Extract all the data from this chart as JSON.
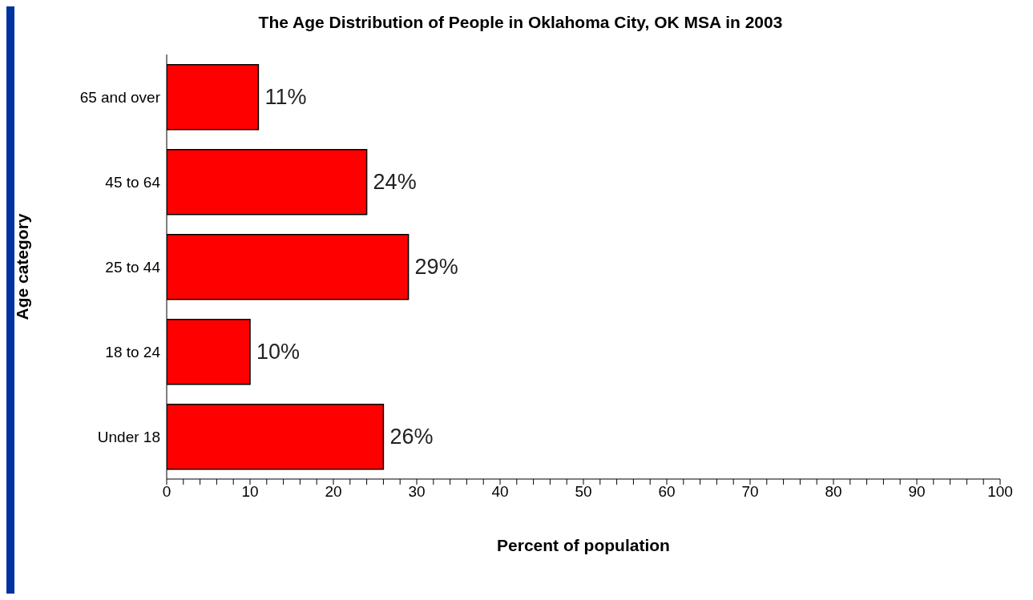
{
  "chart_data": {
    "type": "bar",
    "orientation": "horizontal",
    "title": "The Age Distribution of People in Oklahoma City, OK MSA in 2003",
    "xlabel": "Percent of population",
    "ylabel": "Age category",
    "categories": [
      "65 and over",
      "45 to 64",
      "25 to 44",
      "18 to 24",
      "Under 18"
    ],
    "values": [
      11,
      24,
      29,
      10,
      26
    ],
    "value_labels": [
      "11%",
      "24%",
      "29%",
      "10%",
      "26%"
    ],
    "color": "#ff0000",
    "xlim": [
      0,
      100
    ],
    "xticks": [
      0,
      {
        "value": 2,
        "label": null
      },
      {
        "value": 4,
        "label": null
      },
      {
        "value": 6,
        "label": null
      },
      {
        "value": 8,
        "label": null
      },
      10,
      {
        "value": 12,
        "label": null
      },
      {
        "value": 14,
        "label": null
      },
      {
        "value": 16,
        "label": null
      },
      {
        "value": 18,
        "label": null
      },
      20,
      {
        "value": 22,
        "label": null
      },
      {
        "value": 24,
        "label": null
      },
      {
        "value": 26,
        "label": null
      },
      {
        "value": 28,
        "label": null
      },
      30,
      {
        "value": 32,
        "label": null
      },
      {
        "value": 34,
        "label": null
      },
      {
        "value": 36,
        "label": null
      },
      {
        "value": 38,
        "label": null
      },
      40,
      {
        "value": 42,
        "label": null
      },
      {
        "value": 44,
        "label": null
      },
      {
        "value": 46,
        "label": null
      },
      {
        "value": 48,
        "label": null
      },
      50,
      {
        "value": 52,
        "label": null
      },
      {
        "value": 54,
        "label": null
      },
      {
        "value": 56,
        "label": null
      },
      {
        "value": 58,
        "label": null
      },
      60,
      {
        "value": 62,
        "label": null
      },
      {
        "value": 64,
        "label": null
      },
      {
        "value": 66,
        "label": null
      },
      {
        "value": 68,
        "label": null
      },
      70,
      {
        "value": 72,
        "label": null
      },
      {
        "value": 74,
        "label": null
      },
      {
        "value": 76,
        "label": null
      },
      {
        "value": 78,
        "label": null
      },
      80,
      {
        "value": 82,
        "label": null
      },
      {
        "value": 84,
        "label": null
      },
      {
        "value": 86,
        "label": null
      },
      {
        "value": 88,
        "label": null
      },
      90,
      {
        "value": 92,
        "label": null
      },
      {
        "value": 94,
        "label": null
      },
      {
        "value": 96,
        "label": null
      },
      {
        "value": 98,
        "label": null
      },
      100
    ]
  }
}
